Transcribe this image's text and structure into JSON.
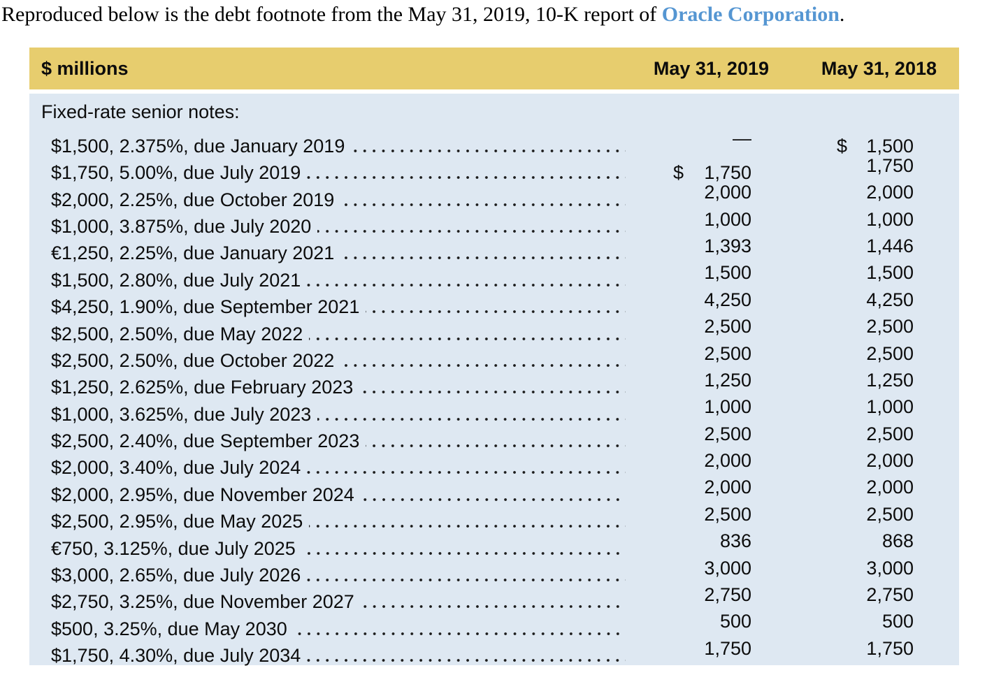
{
  "intro": {
    "prefix": "Reproduced below is the debt footnote from the May 31, 2019, 10-K report of ",
    "link_text": "Oracle Corporation",
    "suffix": "."
  },
  "table": {
    "colors": {
      "header_bg": "#e7cd6e",
      "body_bg": "#dee8f2",
      "link_blue": "#5596d2"
    },
    "header": {
      "caption": "$ millions",
      "col_2019": "May 31, 2019",
      "col_2018": "May 31, 2018"
    },
    "section_label": "Fixed-rate senior notes:",
    "rows": [
      {
        "label": "$1,500, 2.375%, due January 2019",
        "cur_2019": "",
        "v_2019": "—",
        "cur_2018": "$",
        "v_2018": "1,500"
      },
      {
        "label": "$1,750, 5.00%, due July 2019",
        "cur_2019": "$",
        "v_2019": "1,750",
        "cur_2018": "",
        "v_2018": "1,750"
      },
      {
        "label": "$2,000, 2.25%, due October 2019",
        "cur_2019": "",
        "v_2019": "2,000",
        "cur_2018": "",
        "v_2018": "2,000"
      },
      {
        "label": "$1,000, 3.875%, due July 2020",
        "cur_2019": "",
        "v_2019": "1,000",
        "cur_2018": "",
        "v_2018": "1,000"
      },
      {
        "label": "€1,250, 2.25%, due January 2021",
        "cur_2019": "",
        "v_2019": "1,393",
        "cur_2018": "",
        "v_2018": "1,446"
      },
      {
        "label": "$1,500, 2.80%, due July 2021",
        "cur_2019": "",
        "v_2019": "1,500",
        "cur_2018": "",
        "v_2018": "1,500"
      },
      {
        "label": "$4,250, 1.90%, due September 2021",
        "cur_2019": "",
        "v_2019": "4,250",
        "cur_2018": "",
        "v_2018": "4,250"
      },
      {
        "label": "$2,500, 2.50%, due May 2022",
        "cur_2019": "",
        "v_2019": "2,500",
        "cur_2018": "",
        "v_2018": "2,500"
      },
      {
        "label": "$2,500, 2.50%, due October 2022",
        "cur_2019": "",
        "v_2019": "2,500",
        "cur_2018": "",
        "v_2018": "2,500"
      },
      {
        "label": "$1,250, 2.625%, due February 2023",
        "cur_2019": "",
        "v_2019": "1,250",
        "cur_2018": "",
        "v_2018": "1,250"
      },
      {
        "label": "$1,000, 3.625%, due July 2023",
        "cur_2019": "",
        "v_2019": "1,000",
        "cur_2018": "",
        "v_2018": "1,000"
      },
      {
        "label": "$2,500, 2.40%, due September 2023",
        "cur_2019": "",
        "v_2019": "2,500",
        "cur_2018": "",
        "v_2018": "2,500"
      },
      {
        "label": "$2,000, 3.40%, due July 2024",
        "cur_2019": "",
        "v_2019": "2,000",
        "cur_2018": "",
        "v_2018": "2,000"
      },
      {
        "label": "$2,000, 2.95%, due November 2024",
        "cur_2019": "",
        "v_2019": "2,000",
        "cur_2018": "",
        "v_2018": "2,000"
      },
      {
        "label": "$2,500, 2.95%, due May 2025",
        "cur_2019": "",
        "v_2019": "2,500",
        "cur_2018": "",
        "v_2018": "2,500"
      },
      {
        "label": "€750, 3.125%, due July 2025",
        "cur_2019": "",
        "v_2019": "836",
        "cur_2018": "",
        "v_2018": "868"
      },
      {
        "label": "$3,000, 2.65%, due July 2026",
        "cur_2019": "",
        "v_2019": "3,000",
        "cur_2018": "",
        "v_2018": "3,000"
      },
      {
        "label": "$2,750, 3.25%, due November 2027",
        "cur_2019": "",
        "v_2019": "2,750",
        "cur_2018": "",
        "v_2018": "2,750"
      },
      {
        "label": "$500, 3.25%, due May 2030",
        "cur_2019": "",
        "v_2019": "500",
        "cur_2018": "",
        "v_2018": "500"
      },
      {
        "label": "$1,750, 4.30%, due July 2034",
        "cur_2019": "",
        "v_2019": "1,750",
        "cur_2018": "",
        "v_2018": "1,750"
      }
    ]
  }
}
